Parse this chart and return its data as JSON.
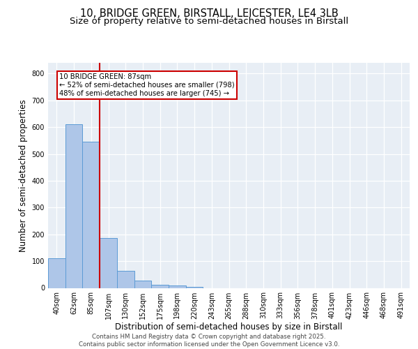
{
  "title1": "10, BRIDGE GREEN, BIRSTALL, LEICESTER, LE4 3LB",
  "title2": "Size of property relative to semi-detached houses in Birstall",
  "xlabel": "Distribution of semi-detached houses by size in Birstall",
  "ylabel": "Number of semi-detached properties",
  "categories": [
    "40sqm",
    "62sqm",
    "85sqm",
    "107sqm",
    "130sqm",
    "152sqm",
    "175sqm",
    "198sqm",
    "220sqm",
    "243sqm",
    "265sqm",
    "288sqm",
    "310sqm",
    "333sqm",
    "356sqm",
    "378sqm",
    "401sqm",
    "423sqm",
    "446sqm",
    "468sqm",
    "491sqm"
  ],
  "values": [
    110,
    610,
    545,
    185,
    65,
    28,
    12,
    8,
    3,
    0,
    0,
    0,
    0,
    0,
    0,
    0,
    0,
    0,
    0,
    0,
    0
  ],
  "bar_color": "#aec6e8",
  "bar_edge_color": "#5b9bd5",
  "vline_x": 2.5,
  "vline_color": "#cc0000",
  "annotation_text": "10 BRIDGE GREEN: 87sqm\n← 52% of semi-detached houses are smaller (798)\n48% of semi-detached houses are larger (745) →",
  "annotation_box_color": "#ffffff",
  "annotation_box_edge": "#cc0000",
  "ylim": [
    0,
    840
  ],
  "yticks": [
    0,
    100,
    200,
    300,
    400,
    500,
    600,
    700,
    800
  ],
  "background_color": "#e8eef5",
  "footer1": "Contains HM Land Registry data © Crown copyright and database right 2025.",
  "footer2": "Contains public sector information licensed under the Open Government Licence v3.0.",
  "title_fontsize": 10.5,
  "subtitle_fontsize": 9.5,
  "tick_fontsize": 7,
  "label_fontsize": 8.5,
  "footer_fontsize": 6.2
}
